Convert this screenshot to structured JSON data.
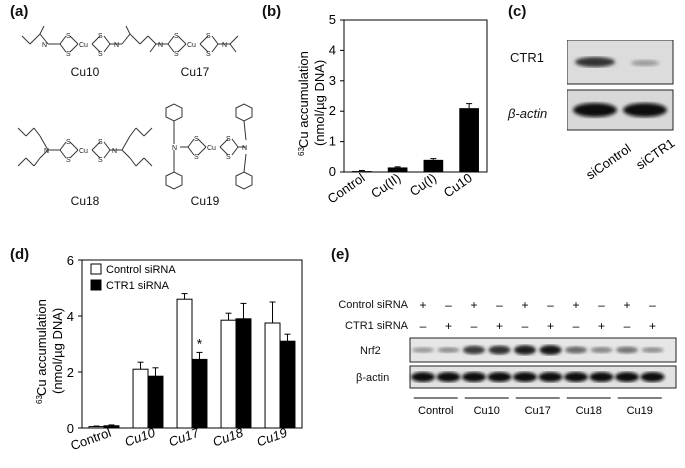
{
  "panels": {
    "a": "(a)",
    "b": "(b)",
    "c": "(c)",
    "d": "(d)",
    "e": "(e)"
  },
  "panel_a": {
    "compounds": [
      "Cu10",
      "Cu17",
      "Cu18",
      "Cu19"
    ],
    "atoms": {
      "s": "S",
      "n": "N",
      "cu": "Cu"
    }
  },
  "panel_c": {
    "rows": [
      "CTR1",
      "β-actin"
    ],
    "lanes": [
      "siControl",
      "siCTR1"
    ]
  },
  "panel_e": {
    "row_labels": [
      "Control siRNA",
      "CTR1 siRNA"
    ],
    "control_sirna_marks": [
      "+",
      "–",
      "+",
      "–",
      "+",
      "–",
      "+",
      "–",
      "+",
      "–"
    ],
    "ctr1_sirna_marks": [
      "–",
      "+",
      "–",
      "+",
      "–",
      "+",
      "–",
      "+",
      "–",
      "+"
    ],
    "blots": [
      "Nrf2",
      "β-actin"
    ],
    "groups": [
      "Control",
      "Cu10",
      "Cu17",
      "Cu18",
      "Cu19"
    ],
    "nrf2_levels": [
      0.25,
      0.3,
      0.75,
      0.8,
      0.9,
      0.95,
      0.5,
      0.35,
      0.45,
      0.3
    ]
  },
  "chart_data": [
    {
      "type": "bar",
      "panel": "b",
      "categories": [
        "Control",
        "Cu(II)",
        "Cu(I)",
        "Cu10"
      ],
      "values": [
        0.03,
        0.15,
        0.4,
        2.1
      ],
      "errors": [
        0.02,
        0.02,
        0.04,
        0.15
      ],
      "ylabel_prefix": "63",
      "ylabel_main": "Cu accumulation",
      "ylabel_unit": "(nmol/µg DNA)",
      "ylim": [
        0,
        5
      ],
      "yticks": [
        "0",
        "1",
        "2",
        "3",
        "4",
        "5"
      ]
    },
    {
      "type": "bar",
      "panel": "d",
      "categories": [
        "Control",
        "Cu10",
        "Cu17",
        "Cu18",
        "Cu19"
      ],
      "series": [
        {
          "name": "Control siRNA",
          "values": [
            0.05,
            2.1,
            4.6,
            3.85,
            3.75
          ],
          "errors": [
            0.02,
            0.25,
            0.2,
            0.25,
            0.75
          ]
        },
        {
          "name": "CTR1 siRNA",
          "values": [
            0.08,
            1.85,
            2.45,
            3.9,
            3.1
          ],
          "errors": [
            0.03,
            0.3,
            0.25,
            0.55,
            0.25
          ]
        }
      ],
      "annotation": "*",
      "ylabel_prefix": "63",
      "ylabel_main": "Cu accumulation",
      "ylabel_unit": "(nmol/µg DNA)",
      "ylim": [
        0,
        6
      ],
      "yticks": [
        "0",
        "2",
        "4",
        "6"
      ]
    }
  ]
}
